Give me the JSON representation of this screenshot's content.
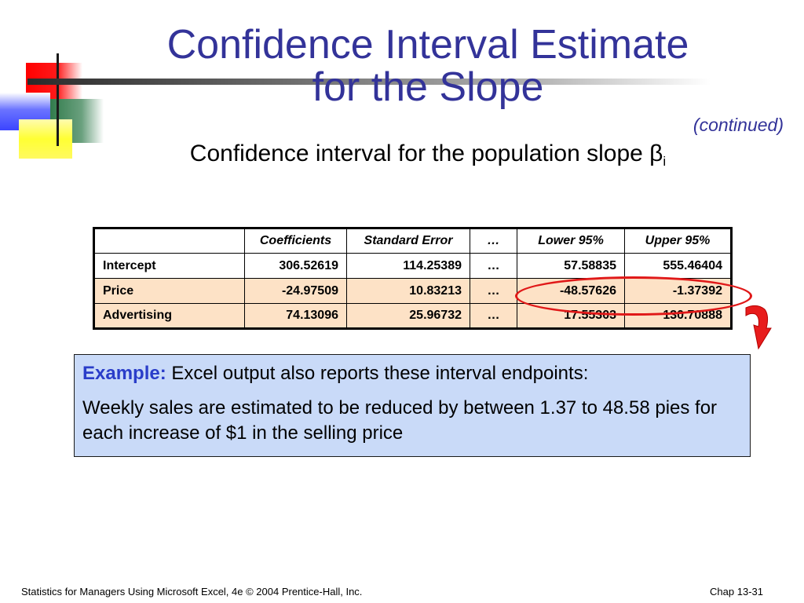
{
  "slide": {
    "title_line1": "Confidence Interval Estimate",
    "title_line2": "for the Slope",
    "continued": "(continued)",
    "subtitle_text": "Confidence interval for the population slope β",
    "subtitle_sub": "i"
  },
  "table": {
    "headers": [
      "",
      "Coefficients",
      "Standard Error",
      "…",
      "Lower 95%",
      "Upper 95%"
    ],
    "rows": [
      {
        "label": "Intercept",
        "coef": "306.52619",
        "se": "114.25389",
        "dots": "…",
        "lower": "57.58835",
        "upper": "555.46404"
      },
      {
        "label": "Price",
        "coef": "-24.97509",
        "se": "10.83213",
        "dots": "…",
        "lower": "-48.57626",
        "upper": "-1.37392"
      },
      {
        "label": "Advertising",
        "coef": "74.13096",
        "se": "25.96732",
        "dots": "…",
        "lower": "17.55303",
        "upper": "130.70888"
      }
    ]
  },
  "example": {
    "keyword": "Example:",
    "line1": " Excel output also reports these interval endpoints:",
    "line2": " Weekly sales are estimated to be reduced by between 1.37 to 48.58 pies for each increase of $1 in the selling price"
  },
  "footer": {
    "left": "Statistics for Managers Using Microsoft Excel, 4e © 2004 Prentice-Hall, Inc.",
    "right": "Chap 13-31"
  },
  "colors": {
    "title": "#333399",
    "highlight_row": "#fde2c6",
    "example_bg": "#c9daf8",
    "ellipse": "#e01818"
  }
}
